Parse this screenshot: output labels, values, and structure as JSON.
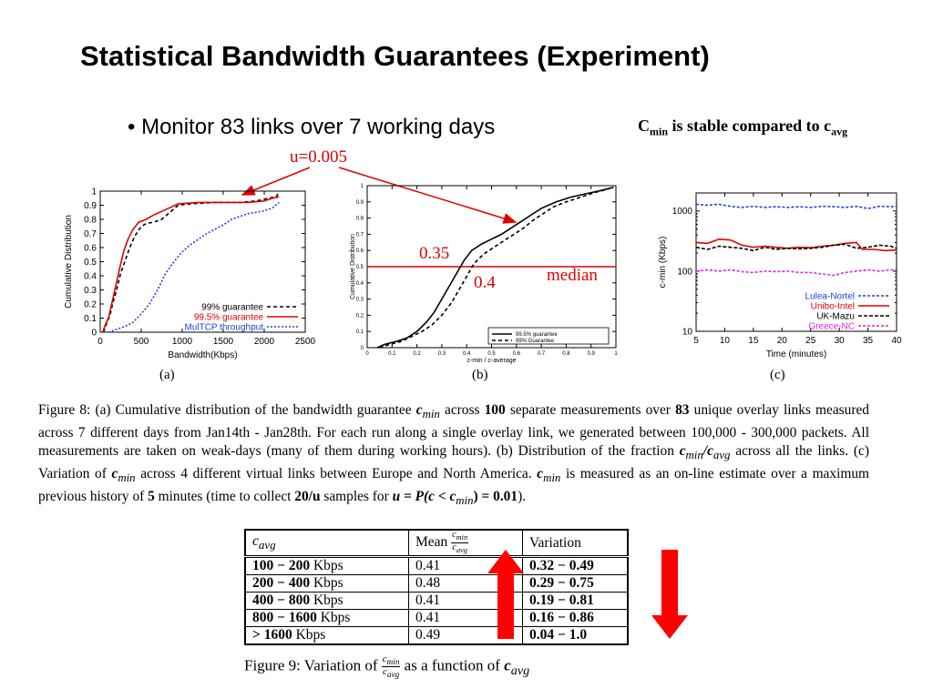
{
  "slide": {
    "title": "Statistical Bandwidth Guarantees (Experiment)",
    "bullet": "• Monitor 83 links over 7 working days",
    "note_c": "C",
    "note_sub1": "min",
    "note_mid": " is stable compared to c",
    "note_sub2": "avg"
  },
  "annotations": {
    "u_label": "u=0.005",
    "val_035": "0.35",
    "val_04": "0.4",
    "median": "median"
  },
  "colors": {
    "red": "#e00000",
    "blue": "#2040e0",
    "magenta": "#e020e0",
    "arrow_red": "#ff0000"
  },
  "chart_data": [
    {
      "id": "a",
      "type": "line",
      "panel_label": "(a)",
      "xlabel": "Bandwidth(Kbps)",
      "ylabel": "Cumulative Distribution",
      "xlim": [
        0,
        2500
      ],
      "ylim": [
        0,
        1
      ],
      "xticks": [
        "0",
        "500",
        "1000",
        "1500",
        "2000",
        "2500"
      ],
      "yticks": [
        "0",
        "0.1",
        "0.2",
        "0.3",
        "0.4",
        "0.5",
        "0.6",
        "0.7",
        "0.8",
        "0.9",
        "1"
      ],
      "legend": "bottom-right",
      "series": [
        {
          "name": "99% guarantee",
          "color": "#000000",
          "dash": "4,3",
          "points": [
            [
              40,
              0
            ],
            [
              70,
              0.05
            ],
            [
              120,
              0.12
            ],
            [
              150,
              0.2
            ],
            [
              200,
              0.3
            ],
            [
              250,
              0.42
            ],
            [
              300,
              0.5
            ],
            [
              360,
              0.6
            ],
            [
              420,
              0.68
            ],
            [
              500,
              0.75
            ],
            [
              560,
              0.77
            ],
            [
              650,
              0.78
            ],
            [
              750,
              0.8
            ],
            [
              850,
              0.85
            ],
            [
              950,
              0.9
            ],
            [
              1100,
              0.91
            ],
            [
              1400,
              0.92
            ],
            [
              1700,
              0.92
            ],
            [
              1900,
              0.93
            ],
            [
              2050,
              0.95
            ],
            [
              2150,
              0.96
            ],
            [
              2180,
              1
            ]
          ]
        },
        {
          "name": "99.5% guarantee",
          "color": "#e00000",
          "dash": "",
          "points": [
            [
              30,
              0
            ],
            [
              60,
              0.05
            ],
            [
              100,
              0.1
            ],
            [
              140,
              0.2
            ],
            [
              190,
              0.33
            ],
            [
              240,
              0.46
            ],
            [
              290,
              0.58
            ],
            [
              340,
              0.66
            ],
            [
              400,
              0.73
            ],
            [
              470,
              0.78
            ],
            [
              560,
              0.8
            ],
            [
              650,
              0.83
            ],
            [
              800,
              0.87
            ],
            [
              950,
              0.91
            ],
            [
              1200,
              0.92
            ],
            [
              1500,
              0.92
            ],
            [
              1800,
              0.92
            ],
            [
              2000,
              0.93
            ],
            [
              2100,
              0.95
            ],
            [
              2180,
              0.96
            ]
          ]
        },
        {
          "name": "MulTCP throughput",
          "color": "#2040e0",
          "dash": "2,2",
          "points": [
            [
              100,
              0
            ],
            [
              200,
              0.02
            ],
            [
              300,
              0.04
            ],
            [
              400,
              0.07
            ],
            [
              500,
              0.13
            ],
            [
              600,
              0.2
            ],
            [
              700,
              0.3
            ],
            [
              800,
              0.42
            ],
            [
              900,
              0.5
            ],
            [
              1000,
              0.57
            ],
            [
              1100,
              0.62
            ],
            [
              1200,
              0.66
            ],
            [
              1300,
              0.7
            ],
            [
              1400,
              0.73
            ],
            [
              1500,
              0.76
            ],
            [
              1600,
              0.8
            ],
            [
              1700,
              0.82
            ],
            [
              1800,
              0.84
            ],
            [
              1900,
              0.85
            ],
            [
              2000,
              0.86
            ],
            [
              2100,
              0.88
            ],
            [
              2180,
              0.92
            ]
          ]
        }
      ]
    },
    {
      "id": "b",
      "type": "line",
      "panel_label": "(b)",
      "xlabel": "c-min / c-average",
      "ylabel": "Cumulative Distribution",
      "xlim": [
        0,
        1
      ],
      "ylim": [
        0,
        1
      ],
      "xticks": [
        "0",
        "0.1",
        "0.2",
        "0.3",
        "0.4",
        "0.5",
        "0.6",
        "0.7",
        "0.8",
        "0.9",
        "1"
      ],
      "yticks": [
        "0",
        "0.1",
        "0.2",
        "0.3",
        "0.4",
        "0.5",
        "0.6",
        "0.7",
        "0.8",
        "0.9",
        "1"
      ],
      "legend": "bottom-right",
      "hline": 0.5,
      "series": [
        {
          "name": "99.5% guarantee",
          "color": "#000000",
          "dash": "",
          "points": [
            [
              0.04,
              0
            ],
            [
              0.07,
              0.02
            ],
            [
              0.12,
              0.04
            ],
            [
              0.16,
              0.06
            ],
            [
              0.2,
              0.1
            ],
            [
              0.24,
              0.16
            ],
            [
              0.27,
              0.22
            ],
            [
              0.3,
              0.3
            ],
            [
              0.33,
              0.38
            ],
            [
              0.36,
              0.46
            ],
            [
              0.39,
              0.54
            ],
            [
              0.42,
              0.6
            ],
            [
              0.46,
              0.64
            ],
            [
              0.5,
              0.67
            ],
            [
              0.54,
              0.7
            ],
            [
              0.58,
              0.74
            ],
            [
              0.62,
              0.78
            ],
            [
              0.66,
              0.82
            ],
            [
              0.7,
              0.86
            ],
            [
              0.76,
              0.9
            ],
            [
              0.82,
              0.93
            ],
            [
              0.88,
              0.95
            ],
            [
              0.94,
              0.97
            ],
            [
              0.99,
              0.99
            ]
          ]
        },
        {
          "name": "99% Guarantee",
          "color": "#000000",
          "dash": "4,3",
          "points": [
            [
              0.05,
              0
            ],
            [
              0.09,
              0.02
            ],
            [
              0.14,
              0.04
            ],
            [
              0.18,
              0.07
            ],
            [
              0.22,
              0.1
            ],
            [
              0.26,
              0.14
            ],
            [
              0.3,
              0.2
            ],
            [
              0.34,
              0.28
            ],
            [
              0.37,
              0.36
            ],
            [
              0.4,
              0.44
            ],
            [
              0.43,
              0.52
            ],
            [
              0.47,
              0.58
            ],
            [
              0.51,
              0.62
            ],
            [
              0.55,
              0.66
            ],
            [
              0.59,
              0.7
            ],
            [
              0.63,
              0.74
            ],
            [
              0.67,
              0.79
            ],
            [
              0.71,
              0.83
            ],
            [
              0.75,
              0.87
            ],
            [
              0.8,
              0.9
            ],
            [
              0.86,
              0.93
            ],
            [
              0.92,
              0.96
            ],
            [
              0.97,
              0.98
            ]
          ]
        }
      ]
    },
    {
      "id": "c",
      "type": "line",
      "panel_label": "(c)",
      "xlabel": "Time (minutes)",
      "ylabel": "c-min (Kbps)",
      "xlim": [
        5,
        40
      ],
      "ylim": [
        10,
        2000
      ],
      "yscale": "log",
      "xticks": [
        "5",
        "10",
        "15",
        "20",
        "25",
        "30",
        "35",
        "40"
      ],
      "yticks": [
        "10",
        "100",
        "1000"
      ],
      "legend": "bottom-right",
      "series": [
        {
          "name": "Lulea-Nortel",
          "color": "#2040e0",
          "dash": "3,2",
          "points": [
            [
              5,
              1300
            ],
            [
              7,
              1250
            ],
            [
              9,
              1300
            ],
            [
              11,
              1200
            ],
            [
              13,
              1150
            ],
            [
              15,
              1200
            ],
            [
              17,
              1150
            ],
            [
              19,
              1180
            ],
            [
              21,
              1150
            ],
            [
              23,
              1180
            ],
            [
              25,
              1150
            ],
            [
              27,
              1200
            ],
            [
              29,
              1180
            ],
            [
              31,
              1150
            ],
            [
              33,
              1200
            ],
            [
              35,
              1100
            ],
            [
              37,
              1200
            ],
            [
              39,
              1180
            ],
            [
              40,
              1200
            ]
          ]
        },
        {
          "name": "Unibo-Intel",
          "color": "#e00000",
          "dash": "",
          "points": [
            [
              5,
              300
            ],
            [
              7,
              290
            ],
            [
              9,
              340
            ],
            [
              11,
              330
            ],
            [
              13,
              270
            ],
            [
              15,
              250
            ],
            [
              17,
              260
            ],
            [
              19,
              250
            ],
            [
              21,
              240
            ],
            [
              23,
              250
            ],
            [
              25,
              245
            ],
            [
              27,
              260
            ],
            [
              29,
              270
            ],
            [
              31,
              290
            ],
            [
              33,
              300
            ],
            [
              34,
              230
            ],
            [
              36,
              230
            ],
            [
              38,
              220
            ],
            [
              40,
              225
            ]
          ]
        },
        {
          "name": "UK-Mazu",
          "color": "#000000",
          "dash": "4,2",
          "points": [
            [
              5,
              250
            ],
            [
              7,
              230
            ],
            [
              9,
              260
            ],
            [
              11,
              250
            ],
            [
              13,
              240
            ],
            [
              15,
              220
            ],
            [
              17,
              250
            ],
            [
              19,
              230
            ],
            [
              21,
              240
            ],
            [
              23,
              235
            ],
            [
              25,
              240
            ],
            [
              27,
              250
            ],
            [
              29,
              270
            ],
            [
              31,
              280
            ],
            [
              33,
              240
            ],
            [
              35,
              250
            ],
            [
              37,
              270
            ],
            [
              39,
              260
            ],
            [
              40,
              240
            ]
          ]
        },
        {
          "name": "Greece-NC",
          "color": "#e020e0",
          "dash": "3,2",
          "points": [
            [
              5,
              100
            ],
            [
              7,
              105
            ],
            [
              9,
              100
            ],
            [
              11,
              105
            ],
            [
              13,
              98
            ],
            [
              15,
              95
            ],
            [
              17,
              100
            ],
            [
              19,
              98
            ],
            [
              21,
              100
            ],
            [
              23,
              95
            ],
            [
              25,
              95
            ],
            [
              27,
              90
            ],
            [
              29,
              85
            ],
            [
              31,
              95
            ],
            [
              33,
              100
            ],
            [
              35,
              105
            ],
            [
              37,
              100
            ],
            [
              39,
              105
            ],
            [
              40,
              105
            ]
          ]
        }
      ]
    }
  ],
  "fig8": {
    "p1": "Figure 8: (a) Cumulative distribution of the bandwidth guarantee ",
    "m1": "c",
    "s1": "min",
    "p2": " across ",
    "m2": "100",
    "p3": " separate measurements over ",
    "m3": "83",
    "p4": " unique overlay links measured across 7 different days from Jan14th - Jan28th. For each run along a single overlay link, we generated between 100,000 - 300,000 packets. All measurements are taken on weak-days (many of them during working hours). (b) Distribution of the fraction ",
    "m4": "c",
    "s4": "min",
    "m4b": "/c",
    "s4b": "avg",
    "p5": " across all the links. (c) Variation of ",
    "m5": "c",
    "s5": "min",
    "p6": " across 4 different virtual links between Europe and North America. ",
    "m6": "c",
    "s6": "min",
    "p7": " is measured as an on-line estimate over a maximum previous history of ",
    "m7": "5",
    "p8": " minutes (time to collect ",
    "m8": "20/u",
    "p9": " samples for ",
    "m9": "u = P(c < c",
    "s9": "min",
    "m9b": ") = 0.01",
    "p10": ")."
  },
  "fig9": {
    "header": {
      "c1": "c",
      "c1sub": "avg",
      "c2": "Mean ",
      "frac_num": "c",
      "frac_num_sub": "min",
      "frac_den": "c",
      "frac_den_sub": "avg",
      "c3": "Variation"
    },
    "rows": [
      {
        "range": "100 − 200",
        "unit": " Kbps",
        "mean": "0.41",
        "variation": "0.32 − 0.49"
      },
      {
        "range": "200 − 400",
        "unit": " Kbps",
        "mean": "0.48",
        "variation": "0.29 − 0.75"
      },
      {
        "range": "400 − 800",
        "unit": " Kbps",
        "mean": "0.41",
        "variation": "0.19 − 0.81"
      },
      {
        "range": "800 − 1600",
        "unit": " Kbps",
        "mean": "0.41",
        "variation": "0.16 − 0.86"
      },
      {
        "range": "> 1600",
        "unit": " Kbps",
        "mean": "0.49",
        "variation": "0.04 − 1.0"
      }
    ],
    "caption_a": "Figure 9: Variation of ",
    "caption_b": " as a function of ",
    "caption_c": "c",
    "caption_csub": "avg"
  }
}
